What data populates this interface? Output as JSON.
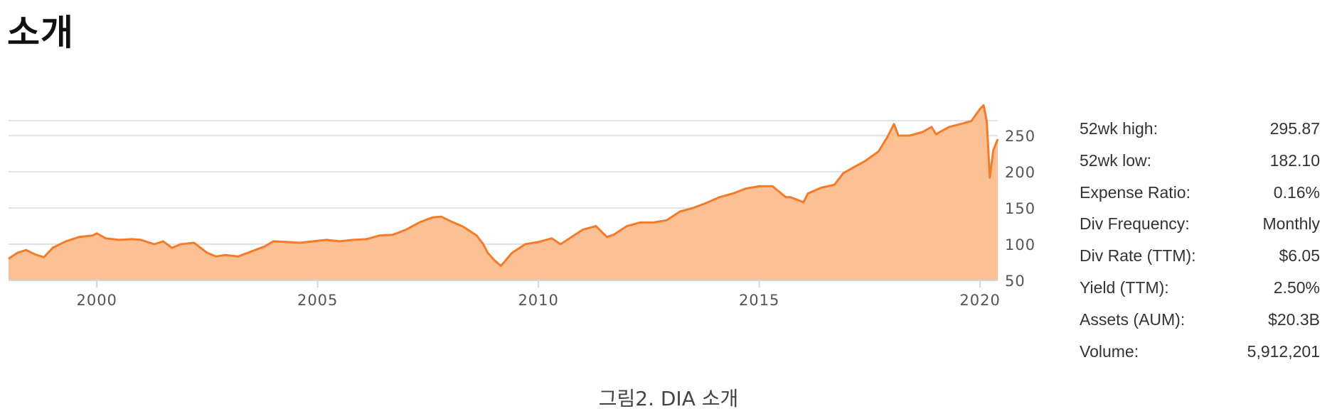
{
  "page": {
    "heading": "소개",
    "caption": "그림2. DIA 소개"
  },
  "colors": {
    "line": "#f47b2a",
    "area": "#fbc195",
    "grid": "#e3e3e3",
    "tick_text": "#555555"
  },
  "chart_data": {
    "type": "area",
    "title": "",
    "xlabel": "",
    "ylabel": "",
    "xlim": [
      1998.0,
      2020.4
    ],
    "ylim": [
      50,
      300
    ],
    "x_ticks": [
      2000,
      2005,
      2010,
      2015,
      2020
    ],
    "x_tick_labels": [
      "2000",
      "2005",
      "2010",
      "2015",
      "2020"
    ],
    "y_ticks": [
      50,
      100,
      150,
      200,
      250
    ],
    "y_tick_labels": [
      "50",
      "100",
      "150",
      "200",
      "250"
    ],
    "y_axis_side": "right",
    "grid": true,
    "legend": "none",
    "series": [
      {
        "x": [
          1998.0,
          1998.2,
          1998.4,
          1998.6,
          1998.8,
          1999.0,
          1999.3,
          1999.6,
          1999.9,
          2000.0,
          2000.2,
          2000.5,
          2000.8,
          2001.0,
          2001.3,
          2001.5,
          2001.7,
          2001.9,
          2002.2,
          2002.5,
          2002.7,
          2002.9,
          2003.2,
          2003.5,
          2003.8,
          2004.0,
          2004.3,
          2004.6,
          2004.9,
          2005.2,
          2005.5,
          2005.8,
          2006.1,
          2006.4,
          2006.7,
          2007.0,
          2007.3,
          2007.6,
          2007.8,
          2008.0,
          2008.3,
          2008.6,
          2008.75,
          2008.85,
          2009.0,
          2009.15,
          2009.4,
          2009.7,
          2010.0,
          2010.3,
          2010.5,
          2010.8,
          2011.0,
          2011.3,
          2011.55,
          2011.7,
          2012.0,
          2012.3,
          2012.6,
          2012.9,
          2013.2,
          2013.5,
          2013.8,
          2014.1,
          2014.4,
          2014.7,
          2015.0,
          2015.3,
          2015.6,
          2015.7,
          2016.0,
          2016.1,
          2016.4,
          2016.7,
          2016.9,
          2017.1,
          2017.4,
          2017.7,
          2017.9,
          2018.05,
          2018.15,
          2018.4,
          2018.7,
          2018.9,
          2019.0,
          2019.3,
          2019.5,
          2019.8,
          2020.0,
          2020.08,
          2020.15,
          2020.22,
          2020.3,
          2020.4
        ],
        "values": [
          80,
          88,
          92,
          86,
          82,
          95,
          104,
          110,
          112,
          115,
          108,
          106,
          107,
          106,
          100,
          104,
          95,
          100,
          102,
          88,
          83,
          85,
          83,
          90,
          97,
          104,
          103,
          102,
          104,
          106,
          104,
          106,
          107,
          112,
          113,
          120,
          130,
          137,
          138,
          132,
          124,
          112,
          100,
          88,
          78,
          70,
          88,
          100,
          103,
          108,
          100,
          112,
          120,
          125,
          110,
          113,
          125,
          130,
          130,
          133,
          145,
          150,
          157,
          165,
          170,
          177,
          180,
          180,
          165,
          165,
          158,
          170,
          178,
          182,
          198,
          205,
          215,
          228,
          248,
          266,
          250,
          250,
          255,
          262,
          252,
          262,
          265,
          270,
          287,
          292,
          270,
          192,
          230,
          245
        ]
      }
    ]
  },
  "stats": [
    {
      "label": "52wk high:",
      "value": "295.87"
    },
    {
      "label": "52wk low:",
      "value": "182.10"
    },
    {
      "label": "Expense Ratio:",
      "value": "0.16%"
    },
    {
      "label": "Div Frequency:",
      "value": "Monthly"
    },
    {
      "label": "Div Rate (TTM):",
      "value": "$6.05"
    },
    {
      "label": "Yield (TTM):",
      "value": "2.50%"
    },
    {
      "label": "Assets (AUM):",
      "value": "$20.3B"
    },
    {
      "label": "Volume:",
      "value": "5,912,201"
    }
  ]
}
